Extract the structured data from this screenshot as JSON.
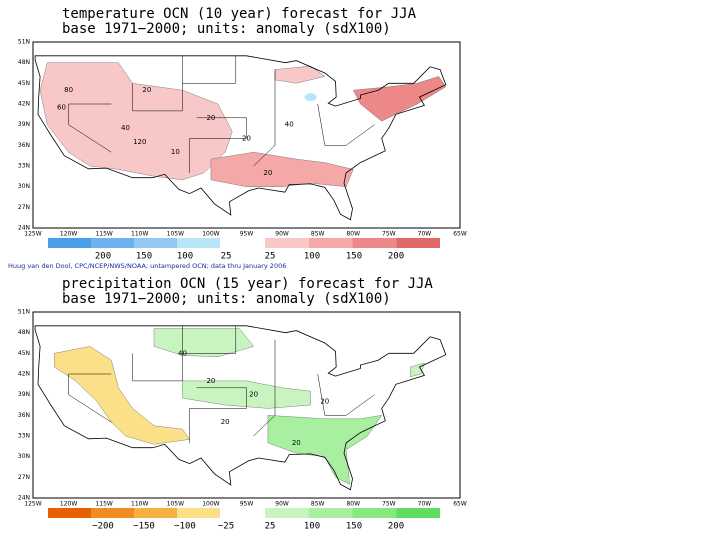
{
  "credit": "Huug van den Dool, CPC/NCEP/NWS/NOAA; untampered OCN; data thru January 2006",
  "panels": [
    {
      "title_lines": [
        "temperature OCN (10 year) forecast for JJA",
        "base 1971−2000; units: anomaly (sdX100)"
      ],
      "lat_labels": [
        "51N",
        "48N",
        "45N",
        "42N",
        "39N",
        "36N",
        "33N",
        "30N",
        "27N",
        "24N"
      ],
      "lon_labels": [
        "125W",
        "120W",
        "115W",
        "110W",
        "105W",
        "100W",
        "95W",
        "90W",
        "85W",
        "80W",
        "75W",
        "70W",
        "65W"
      ],
      "colorbar": {
        "labels": [
          "200",
          "150",
          "100",
          "25",
          "25",
          "100",
          "150",
          "200"
        ],
        "colors": [
          "#4a9ee8",
          "#6cb2f0",
          "#92c8f4",
          "#b8e6f8",
          "#f8c8c8",
          "#f4a8a8",
          "#ec8888",
          "#e06868"
        ]
      },
      "contour_labels": [
        "80",
        "60",
        "20",
        "40",
        "120",
        "10",
        "20",
        "20",
        "40",
        "20"
      ]
    },
    {
      "title_lines": [
        "precipitation OCN (15 year) forecast for JJA",
        "base 1971−2000; units: anomaly (sdX100)"
      ],
      "lat_labels": [
        "51N",
        "48N",
        "45N",
        "42N",
        "39N",
        "36N",
        "33N",
        "30N",
        "27N",
        "24N"
      ],
      "lon_labels": [
        "125W",
        "120W",
        "115W",
        "110W",
        "105W",
        "100W",
        "95W",
        "90W",
        "85W",
        "80W",
        "75W",
        "70W",
        "65W"
      ],
      "colorbar": {
        "labels": [
          "−200",
          "−150",
          "−100",
          "−25",
          "25",
          "100",
          "150",
          "200"
        ],
        "colors": [
          "#e86000",
          "#f08c20",
          "#f4b040",
          "#fce088",
          "#c8f4c0",
          "#a8f0a0",
          "#88e880",
          "#60dc60"
        ]
      },
      "contour_labels": [
        "40",
        "20",
        "20",
        "20",
        "20",
        "20"
      ]
    }
  ]
}
